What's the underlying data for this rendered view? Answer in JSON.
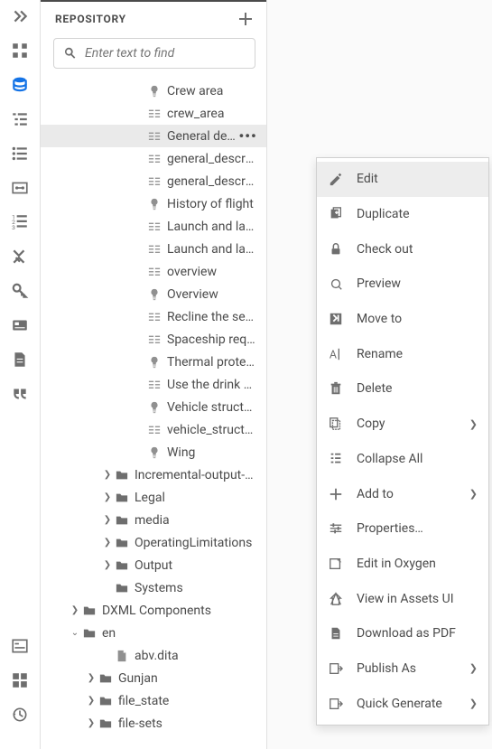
{
  "panel": {
    "title": "REPOSITORY",
    "search_placeholder": "Enter text to find"
  },
  "rail_icons": [
    "expand",
    "grid",
    "database",
    "outline",
    "list",
    "link-panel",
    "numbered-list",
    "xy",
    "key",
    "card",
    "doc",
    "quote"
  ],
  "rail_bottom_icons": [
    "form",
    "apps",
    "history"
  ],
  "rail_active_index": 2,
  "tree": [
    {
      "indent": 5,
      "icon": "topic",
      "label": "Crew area"
    },
    {
      "indent": 5,
      "icon": "map",
      "label": "crew_area"
    },
    {
      "indent": 5,
      "icon": "map",
      "label": "General description",
      "selected": true
    },
    {
      "indent": 5,
      "icon": "map",
      "label": "general_description"
    },
    {
      "indent": 5,
      "icon": "map",
      "label": "general_description"
    },
    {
      "indent": 5,
      "icon": "topic",
      "label": "History of flight"
    },
    {
      "indent": 5,
      "icon": "map",
      "label": "Launch and landing site"
    },
    {
      "indent": 5,
      "icon": "map",
      "label": "Launch and landing site"
    },
    {
      "indent": 5,
      "icon": "map",
      "label": "overview"
    },
    {
      "indent": 5,
      "icon": "topic",
      "label": "Overview"
    },
    {
      "indent": 5,
      "icon": "map",
      "label": "Recline the seats"
    },
    {
      "indent": 5,
      "icon": "map",
      "label": "Spaceship requirements"
    },
    {
      "indent": 5,
      "icon": "topic",
      "label": "Thermal protection"
    },
    {
      "indent": 5,
      "icon": "map",
      "label": "Use the drink dispenser"
    },
    {
      "indent": 5,
      "icon": "topic",
      "label": "Vehicle structure"
    },
    {
      "indent": 5,
      "icon": "map",
      "label": "vehicle_structure"
    },
    {
      "indent": 5,
      "icon": "topic",
      "label": "Wing"
    },
    {
      "indent": 3,
      "icon": "folder",
      "label": "Incremental-output-sample",
      "chev": "right"
    },
    {
      "indent": 3,
      "icon": "folder",
      "label": "Legal",
      "chev": "right"
    },
    {
      "indent": 3,
      "icon": "folder",
      "label": "media",
      "chev": "right"
    },
    {
      "indent": 3,
      "icon": "folder",
      "label": "OperatingLimitations",
      "chev": "right"
    },
    {
      "indent": 3,
      "icon": "folder",
      "label": "Output",
      "chev": "right"
    },
    {
      "indent": 3,
      "icon": "folder",
      "label": "Systems"
    },
    {
      "indent": 1,
      "icon": "folder",
      "label": "DXML Components",
      "chev": "right"
    },
    {
      "indent": 1,
      "icon": "folder",
      "label": "en",
      "chev": "down"
    },
    {
      "indent": 3,
      "icon": "file",
      "label": "abv.dita"
    },
    {
      "indent": 2,
      "icon": "folder",
      "label": "Gunjan",
      "chev": "right"
    },
    {
      "indent": 2,
      "icon": "folder",
      "label": "file_state",
      "chev": "right"
    },
    {
      "indent": 2,
      "icon": "folder",
      "label": "file-sets",
      "chev": "right"
    }
  ],
  "context_menu": [
    {
      "icon": "edit",
      "label": "Edit",
      "hl": true
    },
    {
      "icon": "duplicate",
      "label": "Duplicate"
    },
    {
      "icon": "lock",
      "label": "Check out"
    },
    {
      "icon": "preview",
      "label": "Preview"
    },
    {
      "icon": "moveto",
      "label": "Move to"
    },
    {
      "icon": "rename",
      "label": "Rename"
    },
    {
      "icon": "delete",
      "label": "Delete"
    },
    {
      "icon": "copy",
      "label": "Copy",
      "sub": true
    },
    {
      "icon": "collapse",
      "label": "Collapse All"
    },
    {
      "icon": "add",
      "label": "Add to",
      "sub": true
    },
    {
      "icon": "props",
      "label": "Properties…"
    },
    {
      "icon": "oxygen",
      "label": "Edit in Oxygen"
    },
    {
      "icon": "assets",
      "label": "View in Assets UI"
    },
    {
      "icon": "pdf",
      "label": "Download as PDF"
    },
    {
      "icon": "publish",
      "label": "Publish As",
      "sub": true
    },
    {
      "icon": "quickgen",
      "label": "Quick Generate",
      "sub": true
    }
  ],
  "colors": {
    "accent": "#1473e6",
    "border": "#e1e1e1",
    "text": "#4b4b4b",
    "muted": "#6e6e6e",
    "hover": "#f4f4f4",
    "selected": "#eaeaea"
  }
}
